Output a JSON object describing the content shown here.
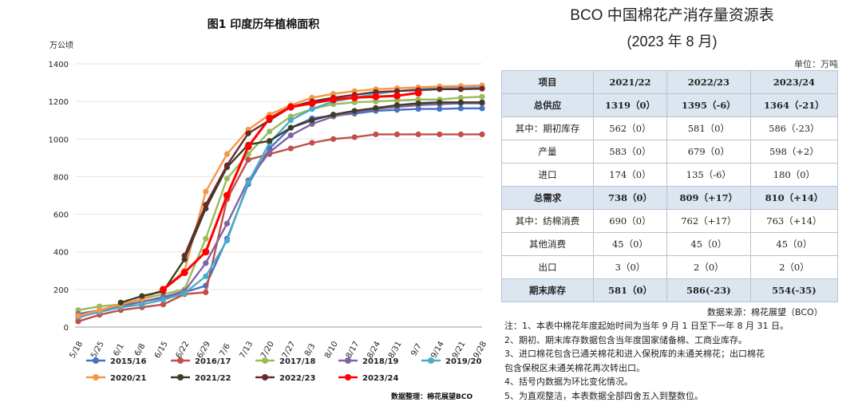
{
  "chart_data": {
    "type": "line",
    "title": "图1 印度历年植棉面积",
    "ylabel": "万公顷",
    "ylim": [
      0,
      1400
    ],
    "yticks": [
      0,
      200,
      400,
      600,
      800,
      1000,
      1200,
      1400
    ],
    "categories": [
      "5/18",
      "5/25",
      "6/1",
      "6/8",
      "6/15",
      "6/22",
      "6/29",
      "7/6",
      "7/13",
      "7/20",
      "7/27",
      "8/3",
      "8/10",
      "8/17",
      "8/24",
      "8/31",
      "9/7",
      "9/14",
      "9/21",
      "9/28"
    ],
    "series": [
      {
        "name": "2015/16",
        "color": "#4472c4",
        "values": [
          50,
          85,
          115,
          135,
          155,
          185,
          220,
          470,
          760,
          950,
          1060,
          1110,
          1125,
          1135,
          1150,
          1155,
          1160,
          1160,
          1163,
          1163
        ]
      },
      {
        "name": "2016/17",
        "color": "#c0504d",
        "values": [
          30,
          65,
          90,
          105,
          120,
          175,
          185,
          680,
          890,
          920,
          950,
          980,
          1000,
          1010,
          1025,
          1025,
          1025,
          1025,
          1025,
          1025
        ]
      },
      {
        "name": "2017/18",
        "color": "#9bbb59",
        "values": [
          90,
          110,
          120,
          150,
          175,
          200,
          470,
          790,
          920,
          1040,
          1120,
          1160,
          1185,
          1195,
          1200,
          1205,
          1210,
          1210,
          1220,
          1225
        ]
      },
      {
        "name": "2018/19",
        "color": "#8064a2",
        "values": [
          70,
          90,
          110,
          135,
          160,
          190,
          340,
          550,
          780,
          930,
          1020,
          1080,
          1120,
          1140,
          1160,
          1170,
          1180,
          1185,
          1190,
          1190
        ]
      },
      {
        "name": "2019/20",
        "color": "#4bacc6",
        "values": [
          55,
          80,
          105,
          120,
          145,
          180,
          270,
          460,
          770,
          980,
          1100,
          1160,
          1200,
          1220,
          1240,
          1255,
          1265,
          1270,
          1272,
          1275
        ]
      },
      {
        "name": "2020/21",
        "color": "#f79646",
        "values": [
          60,
          90,
          120,
          150,
          200,
          300,
          720,
          920,
          1050,
          1130,
          1180,
          1220,
          1240,
          1255,
          1265,
          1270,
          1275,
          1280,
          1282,
          1285
        ]
      },
      {
        "name": "2021/22",
        "color": "#3d3d26",
        "values": [
          null,
          null,
          130,
          165,
          190,
          360,
          630,
          850,
          970,
          990,
          1060,
          1100,
          1130,
          1150,
          1165,
          1180,
          1190,
          1195,
          1195,
          1195
        ]
      },
      {
        "name": "2022/23",
        "color": "#6b2a2a",
        "values": [
          null,
          null,
          null,
          null,
          null,
          380,
          650,
          860,
          1030,
          1100,
          1170,
          1200,
          1220,
          1235,
          1250,
          1255,
          1260,
          1265,
          1265,
          1268
        ]
      },
      {
        "name": "2023/24",
        "color": "#ff0000",
        "values": [
          null,
          null,
          null,
          null,
          200,
          290,
          400,
          700,
          960,
          1110,
          1170,
          1190,
          1210,
          1220,
          1225,
          1230,
          1245,
          null,
          null,
          null
        ]
      }
    ],
    "annotation": "数据整理：棉花展望BCO"
  },
  "table": {
    "title": "BCO 中国棉花产消存量资源表",
    "subtitle": "(2023 年 8 月)",
    "unit": "单位：万吨",
    "headers": [
      "项目",
      "2021/22",
      "2022/23",
      "2023/24"
    ],
    "rows": [
      {
        "cells": [
          "总供应",
          "1319（0）",
          "1395（-6）",
          "1364（-21）"
        ],
        "bold": true
      },
      {
        "cells": [
          "其中：期初库存",
          "562（0）",
          "581（0）",
          "586（-23）"
        ],
        "bold": false
      },
      {
        "cells": [
          "产量",
          "583（0）",
          "679（0）",
          "598（+2）"
        ],
        "bold": false
      },
      {
        "cells": [
          "进口",
          "174（0）",
          "135（-6）",
          "180（0）"
        ],
        "bold": false
      },
      {
        "cells": [
          "总需求",
          "738（0）",
          "809（+17）",
          "810（+14）"
        ],
        "bold": true
      },
      {
        "cells": [
          "其中：纺棉消费",
          "690（0）",
          "762（+17）",
          "763（+14）"
        ],
        "bold": false
      },
      {
        "cells": [
          "其他消费",
          "45（0）",
          "45（0）",
          "45（0）"
        ],
        "bold": false
      },
      {
        "cells": [
          "出口",
          "3（0）",
          "2（0）",
          "2（0）"
        ],
        "bold": false
      },
      {
        "cells": [
          "期末库存",
          "581（0）",
          "586(-23)",
          "554(-35)"
        ],
        "bold": true
      }
    ],
    "source": "数据来源：棉花展望（BCO）",
    "notes": [
      "注：1、本表中棉花年度起始时间为当年 9 月 1 日至下一年 8 月 31 日。",
      "2、期初、期末库存数据包含当年度国家储备棉、工商业库存。",
      "3、进口棉花包含已通关棉花和进入保税库的未通关棉花；出口棉花",
      "包含保税区未通关棉花再次转出口。",
      "4、括号内数据为环比变化情况。",
      "5、为直观整洁，本表数据全部四舍五入到整数位。"
    ]
  }
}
